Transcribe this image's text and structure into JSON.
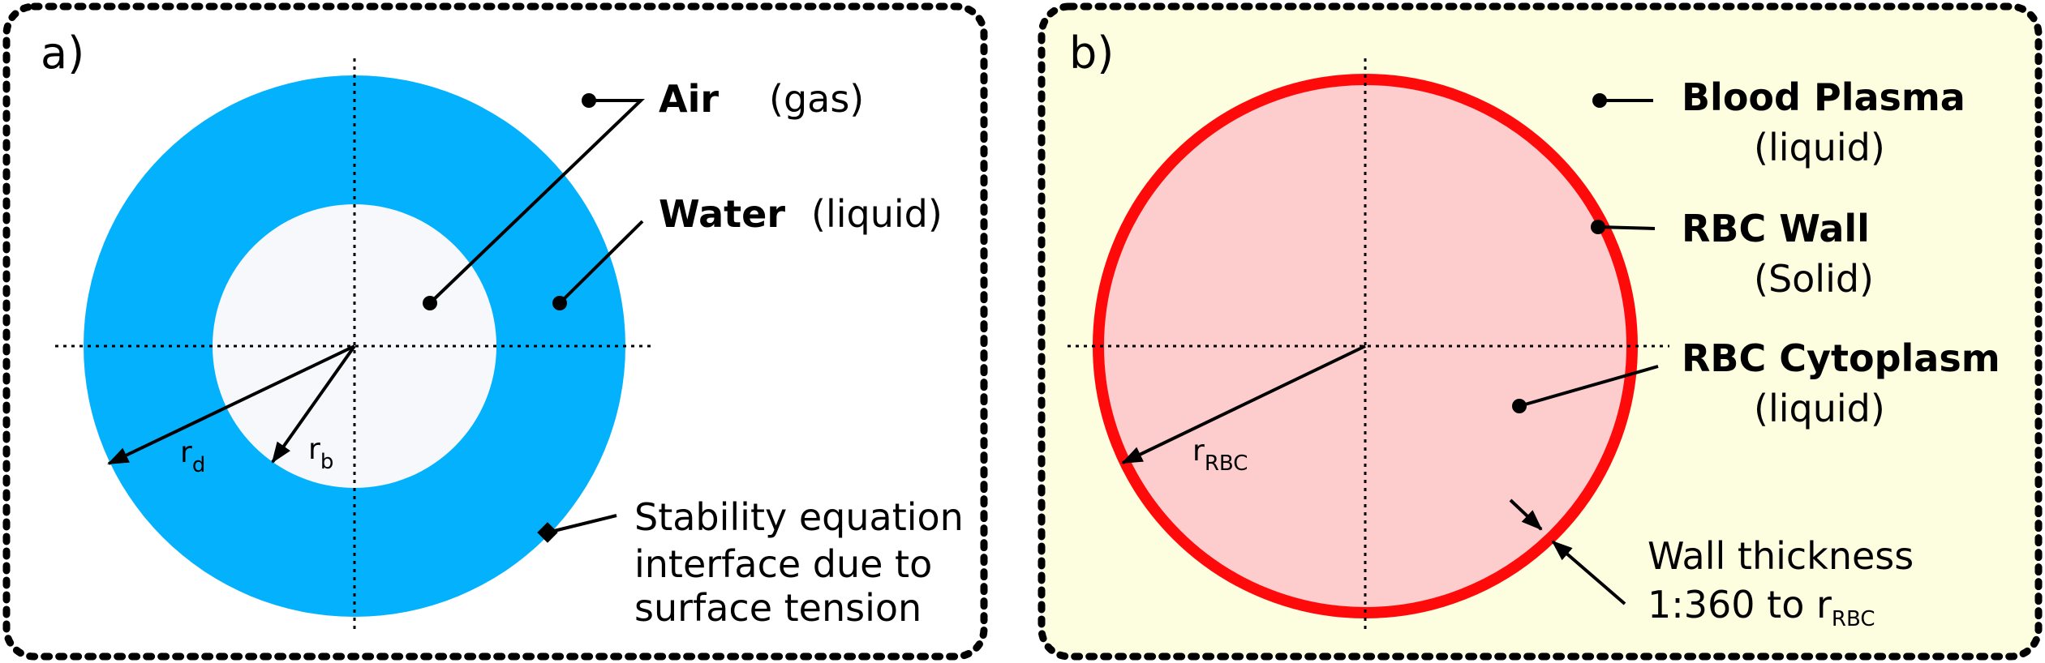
{
  "panel_a": {
    "tag": "a)",
    "air_label": "Air",
    "air_phase": "(gas)",
    "water_label": "Water",
    "water_phase": "(liquid)",
    "rd_base": "r",
    "rd_sub": "d",
    "rb_base": "r",
    "rb_sub": "b",
    "stability_lines": [
      "Stability equation",
      "interface due to",
      "surface tension"
    ],
    "colors": {
      "background": "#ffffff",
      "water": "#04b1fc",
      "air": "#f6f8fb"
    }
  },
  "panel_b": {
    "tag": "b)",
    "plasma_label": "Blood Plasma",
    "plasma_phase": "(liquid)",
    "wall_label": "RBC Wall",
    "wall_phase": "(Solid)",
    "cyto_label": "RBC Cytoplasm",
    "cyto_phase": "(liquid)",
    "rrbc_base": "r",
    "rrbc_sub": "RBC",
    "thickness_line1": "Wall thickness",
    "thickness_line2": "1:360 to r",
    "thickness_sub": "RBC",
    "colors": {
      "background": "#fdfde0",
      "wall": "#ff0a0a",
      "cytoplasm": "#fdcccc"
    }
  }
}
